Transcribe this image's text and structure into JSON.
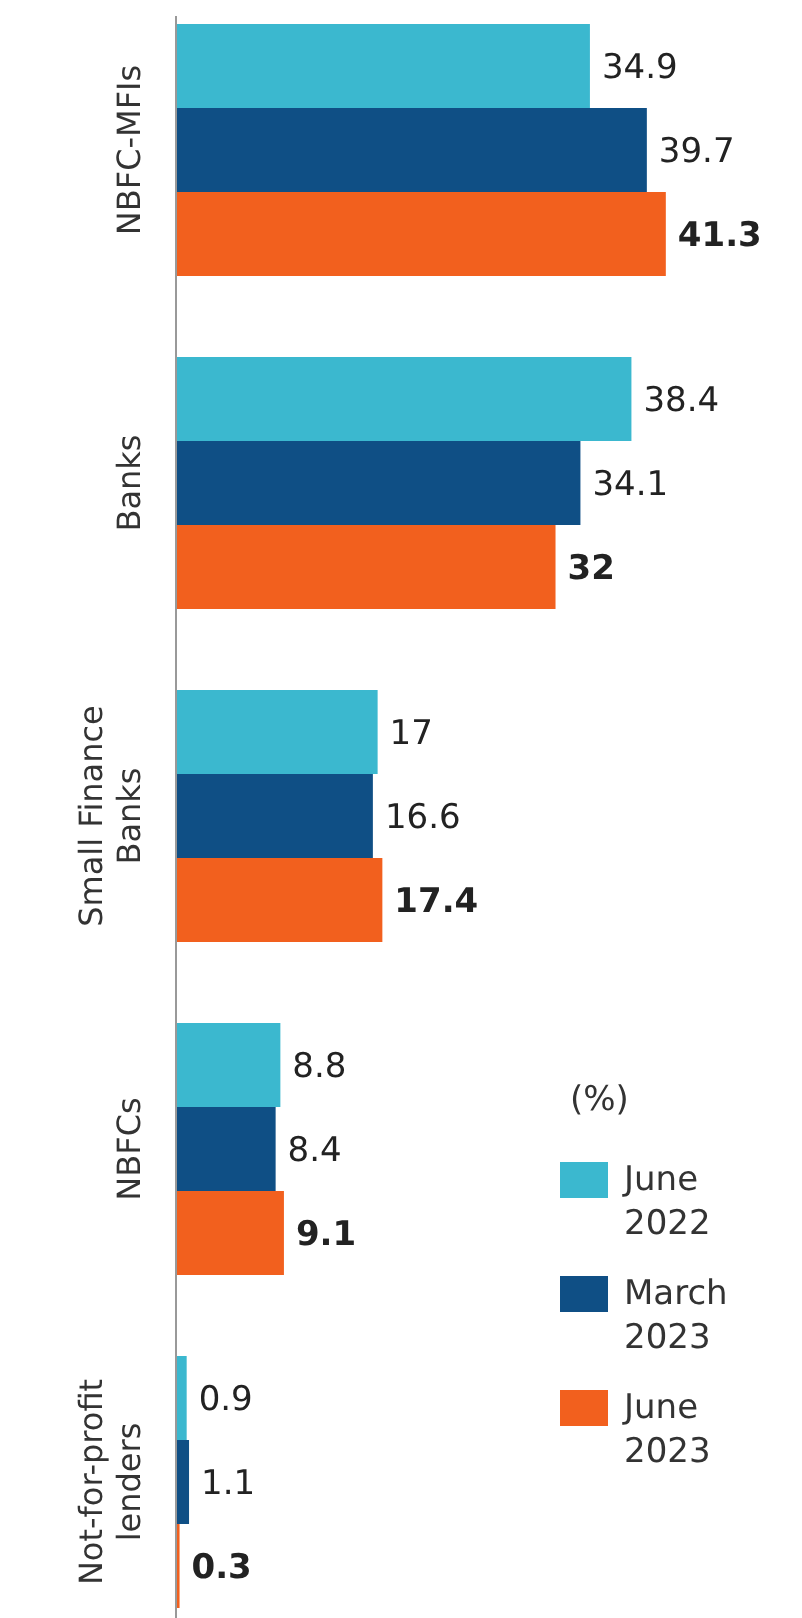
{
  "chart_data": {
    "type": "bar",
    "orientation": "horizontal",
    "categories": [
      "NBFC-MFIs",
      "Banks",
      "Small Finance Banks",
      "NBFCs",
      "Not-for-profit lenders"
    ],
    "series": [
      {
        "name": "June 2022",
        "color": "#3bb8cf",
        "values": [
          34.9,
          38.4,
          17,
          8.8,
          0.9
        ]
      },
      {
        "name": "March 2023",
        "color": "#0f4f85",
        "values": [
          39.7,
          34.1,
          16.6,
          8.4,
          1.1
        ]
      },
      {
        "name": "June 2023",
        "color": "#f2601e",
        "values": [
          41.3,
          32,
          17.4,
          9.1,
          0.3
        ]
      }
    ],
    "data_labels": true,
    "legend": "bottom right",
    "legend_title": "(%)"
  }
}
